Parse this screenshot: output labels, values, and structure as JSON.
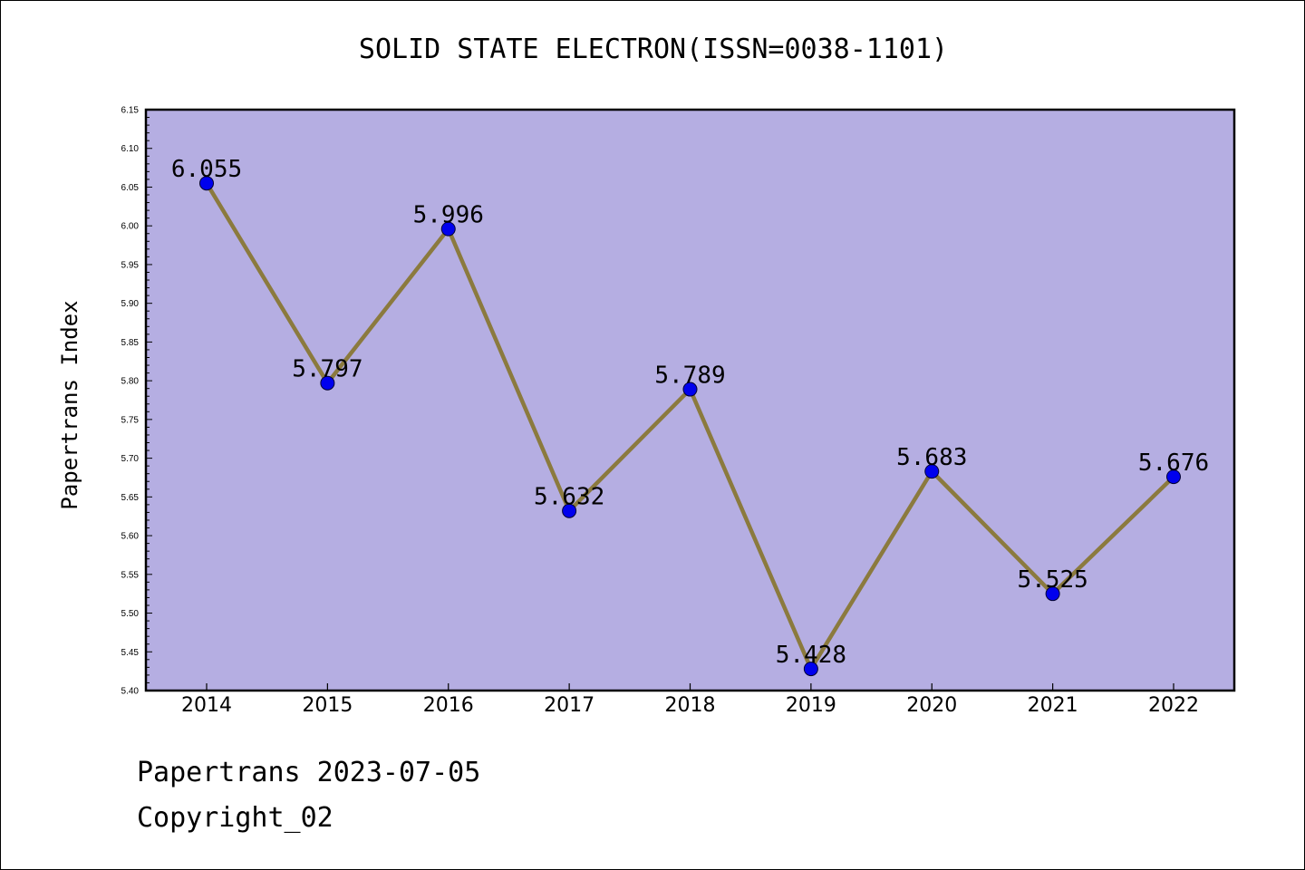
{
  "title": "SOLID STATE ELECTRON(ISSN=0038-1101)",
  "footer": {
    "date_text": "Papertrans 2023-07-05",
    "copyright_text": "Copyright_02"
  },
  "colors": {
    "plot_background": "#b5aee2",
    "line": "#8b7a3e",
    "marker": "#0000ee"
  },
  "chart_data": {
    "type": "line",
    "title": "SOLID STATE ELECTRON(ISSN=0038-1101)",
    "xlabel": "",
    "ylabel": "Papertrans Index",
    "categories": [
      "2014",
      "2015",
      "2016",
      "2017",
      "2018",
      "2019",
      "2020",
      "2021",
      "2022"
    ],
    "values": [
      6.055,
      5.797,
      5.996,
      5.632,
      5.789,
      5.428,
      5.683,
      5.525,
      5.676
    ],
    "value_labels": [
      "6.055",
      "5.797",
      "5.996",
      "5.632",
      "5.789",
      "5.428",
      "5.683",
      "5.525",
      "5.676"
    ],
    "ylim": [
      5.4,
      6.15
    ],
    "yticks": [
      "5.40",
      "5.45",
      "5.50",
      "5.55",
      "5.60",
      "5.65",
      "5.70",
      "5.75",
      "5.80",
      "5.85",
      "5.90",
      "5.95",
      "6.00",
      "6.05",
      "6.10",
      "6.15"
    ],
    "grid": false,
    "legend": "none"
  }
}
